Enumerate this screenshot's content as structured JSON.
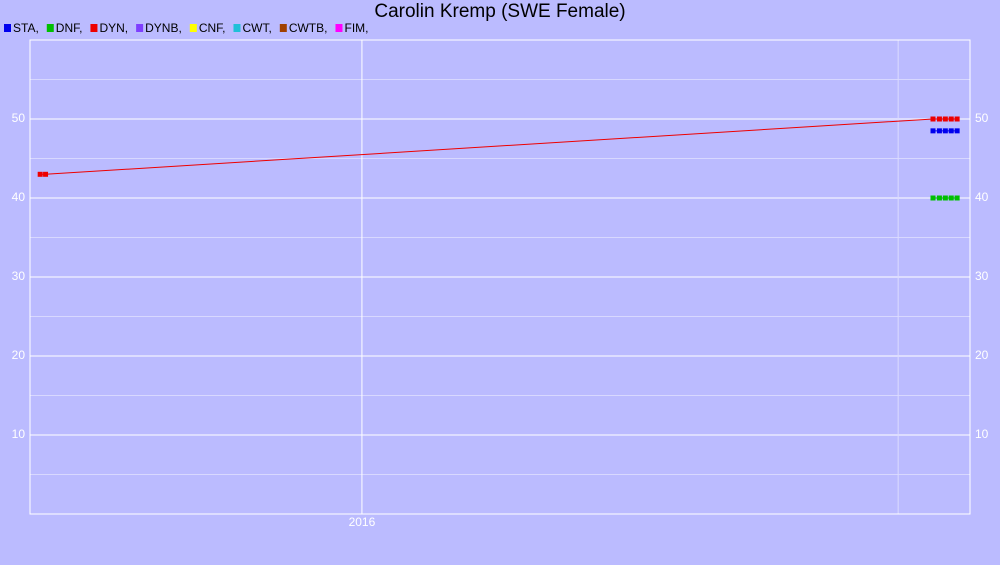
{
  "chart_data": {
    "type": "line",
    "title": "Carolin Kremp (SWE Female)",
    "xlim": [
      2015.381,
      2017.134
    ],
    "xticks": [
      2016,
      {
        "value": 2017,
        "label": null
      }
    ],
    "ylim": [
      0,
      60
    ],
    "yticks": [
      10,
      20,
      30,
      40,
      50
    ],
    "grid": true,
    "series": [
      {
        "name": "STA,",
        "color": "#0000ee",
        "x": [
          2017.065,
          2017.077,
          2017.088,
          2017.099,
          2017.11
        ],
        "values": [
          48.5,
          48.5,
          48.5,
          48.5,
          48.5
        ]
      },
      {
        "name": "DNF,",
        "color": "#00c000",
        "x": [
          2017.065,
          2017.077,
          2017.088,
          2017.099,
          2017.11
        ],
        "values": [
          40,
          40,
          40,
          40,
          40
        ]
      },
      {
        "name": "DYN,",
        "color": "#ee0000",
        "x": [
          2015.4,
          2015.41,
          2017.065,
          2017.077,
          2017.088,
          2017.099,
          2017.11
        ],
        "values": [
          43,
          43,
          50,
          50,
          50,
          50,
          50
        ]
      },
      {
        "name": "DYNB,",
        "color": "#7f3fff",
        "x": [],
        "values": []
      },
      {
        "name": "CNF,",
        "color": "#ffff00",
        "x": [],
        "values": []
      },
      {
        "name": "CWT,",
        "color": "#20c0d8",
        "x": [],
        "values": []
      },
      {
        "name": "CWTB,",
        "color": "#a04000",
        "x": [],
        "values": []
      },
      {
        "name": "FIM,",
        "color": "#ff00ff",
        "x": [],
        "values": []
      }
    ]
  }
}
